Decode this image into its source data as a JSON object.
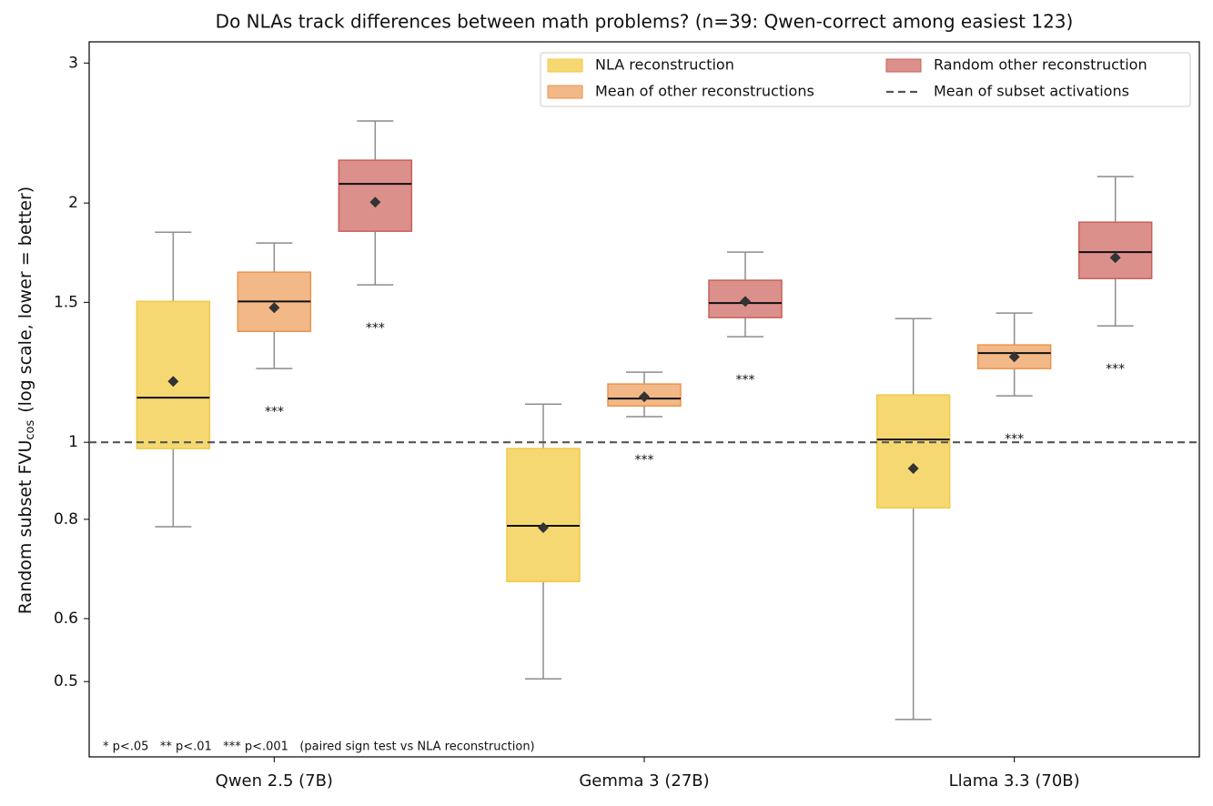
{
  "chart_data": {
    "type": "box",
    "title": "Do NLAs track differences between math problems?  (n=39: Qwen-correct among easiest 123)",
    "ylabel": {
      "text": "Random subset FVU",
      "subscript": "cos",
      "suffix": "(log scale, lower = better)"
    },
    "log_scale": true,
    "ylim": [
      0.402,
      3.19
    ],
    "yticks": [
      0.5,
      0.6,
      0.8,
      1,
      1.5,
      2,
      3
    ],
    "categories": [
      "Qwen 2.5 (7B)",
      "Gemma 3 (27B)",
      "Llama 3.3 (70B)"
    ],
    "series": [
      {
        "name": "NLA reconstruction",
        "color": "#f6d872",
        "edge": "#f0c94a",
        "boxes": [
          {
            "whisker_low": 0.783,
            "q1": 0.982,
            "median": 1.138,
            "q3": 1.504,
            "whisker_high": 1.838,
            "mean": 1.193
          },
          {
            "whisker_low": 0.504,
            "q1": 0.668,
            "median": 0.785,
            "q3": 0.982,
            "whisker_high": 1.117,
            "mean": 0.781
          },
          {
            "whisker_low": 0.448,
            "q1": 0.827,
            "median": 1.008,
            "q3": 1.147,
            "whisker_high": 1.431,
            "mean": 0.927
          }
        ]
      },
      {
        "name": "Mean of other reconstructions",
        "color": "#f2b887",
        "edge": "#e99550",
        "significance": [
          "***",
          "***",
          "***"
        ],
        "boxes": [
          {
            "whisker_low": 1.238,
            "q1": 1.379,
            "median": 1.504,
            "q3": 1.637,
            "whisker_high": 1.781,
            "mean": 1.477
          },
          {
            "whisker_low": 1.077,
            "q1": 1.111,
            "median": 1.135,
            "q3": 1.184,
            "whisker_high": 1.225,
            "mean": 1.141
          },
          {
            "whisker_low": 1.144,
            "q1": 1.238,
            "median": 1.295,
            "q3": 1.326,
            "whisker_high": 1.454,
            "mean": 1.281
          }
        ]
      },
      {
        "name": "Random other reconstruction",
        "color": "#dc908b",
        "edge": "#c9605a",
        "significance": [
          "***",
          "***",
          "***"
        ],
        "boxes": [
          {
            "whisker_low": 1.578,
            "q1": 1.843,
            "median": 2.114,
            "q3": 2.264,
            "whisker_high": 2.536,
            "mean": 2.005
          },
          {
            "whisker_low": 1.358,
            "q1": 1.435,
            "median": 1.497,
            "q3": 1.599,
            "whisker_high": 1.735,
            "mean": 1.504
          },
          {
            "whisker_low": 1.401,
            "q1": 1.607,
            "median": 1.735,
            "q3": 1.892,
            "whisker_high": 2.159,
            "mean": 1.707
          }
        ]
      }
    ],
    "reference_line": {
      "name": "Mean of subset activations",
      "value": 1,
      "color": "#555555"
    },
    "footnote": "* p<.05   ** p<.01   *** p<.001   (paired sign test vs NLA reconstruction)",
    "legend": "upper right"
  }
}
